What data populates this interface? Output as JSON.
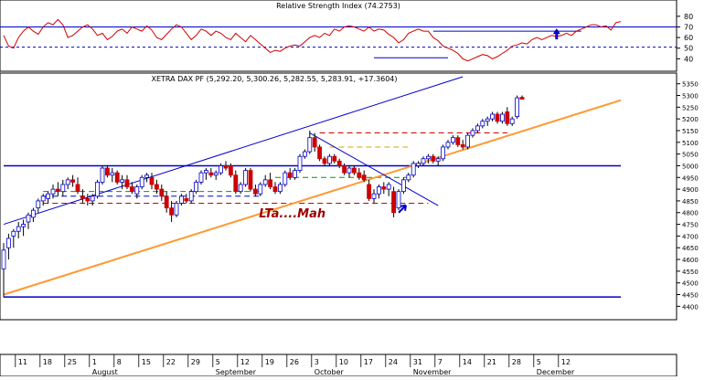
{
  "chart_data": [
    {
      "type": "line",
      "title": "Relative Strength Index (74.2753)",
      "ylim": [
        30,
        85
      ],
      "yticks": [
        40,
        50,
        60,
        70,
        80
      ],
      "levels": [
        51,
        70
      ],
      "grid": false,
      "colors": {
        "rsi": "#cc0000",
        "levels": "#0000cc"
      },
      "series": [
        {
          "values": [
            62,
            52,
            50,
            60,
            66,
            70,
            66,
            63,
            70,
            74,
            72,
            77,
            72,
            60,
            62,
            66,
            70,
            72,
            68,
            62,
            64,
            58,
            61,
            66,
            68,
            64,
            70,
            68,
            66,
            71,
            67,
            60,
            58,
            63,
            68,
            72,
            70,
            64,
            58,
            62,
            68,
            66,
            62,
            66,
            64,
            60,
            58,
            64,
            60,
            56,
            62,
            58,
            54,
            50,
            46,
            48,
            47,
            50,
            52,
            53,
            52,
            56,
            60,
            62,
            60,
            64,
            62,
            68,
            66,
            70,
            71,
            70,
            68,
            66,
            70,
            66,
            68,
            67,
            63,
            60,
            55,
            58,
            64,
            66,
            68,
            66,
            66,
            60,
            57,
            52,
            50,
            48,
            45,
            40,
            38,
            40,
            42,
            44,
            43,
            40,
            42,
            45,
            48,
            52,
            53,
            55,
            54,
            58,
            60,
            58,
            60,
            62,
            61,
            62,
            64,
            62,
            66,
            68,
            70,
            72,
            72,
            70,
            71,
            67,
            74,
            75
          ]
        }
      ],
      "annotation_lines": [
        {
          "x": [
            87,
            117
          ],
          "y": [
            66,
            66
          ]
        },
        {
          "x": [
            75,
            90
          ],
          "y": [
            41,
            41
          ]
        }
      ],
      "arrows": [
        {
          "x": 112,
          "y": 60,
          "direction": "up"
        }
      ]
    },
    {
      "type": "candlestick",
      "title": "XETRA DAX PF (5,292.20, 5,300.26, 5,282.55, 5,283.91, +17.3604)",
      "ylim": [
        4335,
        5380
      ],
      "yticks": [
        4400,
        4450,
        4500,
        4550,
        4600,
        4650,
        4700,
        4750,
        4800,
        4850,
        4900,
        4950,
        5000,
        5050,
        5100,
        5150,
        5200,
        5250,
        5300,
        5350
      ],
      "ytick_labels": [
        "4400",
        "4450",
        "4500",
        "4550",
        "4600",
        "4650",
        "4700",
        "4750",
        "4800",
        "4850",
        "4900",
        "4950",
        "5000",
        "5050",
        "5100",
        "5150",
        "5200",
        "5250",
        "5300",
        "5350"
      ],
      "x_ticks": [
        {
          "x": 2,
          "label": "11"
        },
        {
          "x": 7,
          "label": "18"
        },
        {
          "x": 12,
          "label": "25"
        },
        {
          "x": 17,
          "label": "1"
        },
        {
          "x": 22,
          "label": "8"
        },
        {
          "x": 27,
          "label": "15"
        },
        {
          "x": 32,
          "label": "22"
        },
        {
          "x": 37,
          "label": "29"
        },
        {
          "x": 42,
          "label": "5"
        },
        {
          "x": 47,
          "label": "12"
        },
        {
          "x": 52,
          "label": "19"
        },
        {
          "x": 57,
          "label": "26"
        },
        {
          "x": 62,
          "label": "3"
        },
        {
          "x": 67,
          "label": "10"
        },
        {
          "x": 72,
          "label": "17"
        },
        {
          "x": 77,
          "label": "24"
        },
        {
          "x": 82,
          "label": "31"
        },
        {
          "x": 87,
          "label": "7"
        },
        {
          "x": 92,
          "label": "14"
        },
        {
          "x": 97,
          "label": "21"
        },
        {
          "x": 102,
          "label": "28"
        },
        {
          "x": 107,
          "label": "5"
        },
        {
          "x": 112,
          "label": "12"
        }
      ],
      "month_labels": [
        {
          "x": 17,
          "label": "August"
        },
        {
          "x": 42,
          "label": "September"
        },
        {
          "x": 62,
          "label": "October"
        },
        {
          "x": 82,
          "label": "November"
        },
        {
          "x": 107,
          "label": "December"
        }
      ],
      "candles": [
        {
          "o": 4560,
          "h": 4670,
          "l": 4440,
          "c": 4640
        },
        {
          "o": 4650,
          "h": 4710,
          "l": 4600,
          "c": 4690
        },
        {
          "o": 4700,
          "h": 4730,
          "l": 4650,
          "c": 4720
        },
        {
          "o": 4720,
          "h": 4760,
          "l": 4690,
          "c": 4740
        },
        {
          "o": 4740,
          "h": 4770,
          "l": 4700,
          "c": 4750
        },
        {
          "o": 4760,
          "h": 4800,
          "l": 4730,
          "c": 4790
        },
        {
          "o": 4780,
          "h": 4820,
          "l": 4760,
          "c": 4810
        },
        {
          "o": 4820,
          "h": 4860,
          "l": 4800,
          "c": 4850
        },
        {
          "o": 4850,
          "h": 4880,
          "l": 4830,
          "c": 4870
        },
        {
          "o": 4860,
          "h": 4890,
          "l": 4840,
          "c": 4880
        },
        {
          "o": 4880,
          "h": 4920,
          "l": 4860,
          "c": 4900
        },
        {
          "o": 4900,
          "h": 4930,
          "l": 4870,
          "c": 4890
        },
        {
          "o": 4890,
          "h": 4940,
          "l": 4870,
          "c": 4920
        },
        {
          "o": 4920,
          "h": 4950,
          "l": 4900,
          "c": 4940
        },
        {
          "o": 4940,
          "h": 4960,
          "l": 4910,
          "c": 4930
        },
        {
          "o": 4920,
          "h": 4950,
          "l": 4880,
          "c": 4890
        },
        {
          "o": 4870,
          "h": 4900,
          "l": 4840,
          "c": 4860
        },
        {
          "o": 4860,
          "h": 4880,
          "l": 4830,
          "c": 4850
        },
        {
          "o": 4850,
          "h": 4880,
          "l": 4830,
          "c": 4870
        },
        {
          "o": 4870,
          "h": 4940,
          "l": 4860,
          "c": 4930
        },
        {
          "o": 4930,
          "h": 5000,
          "l": 4920,
          "c": 4990
        },
        {
          "o": 4990,
          "h": 5000,
          "l": 4950,
          "c": 4960
        },
        {
          "o": 4960,
          "h": 4990,
          "l": 4930,
          "c": 4970
        },
        {
          "o": 4970,
          "h": 4980,
          "l": 4920,
          "c": 4930
        },
        {
          "o": 4930,
          "h": 4960,
          "l": 4900,
          "c": 4940
        },
        {
          "o": 4940,
          "h": 4960,
          "l": 4900,
          "c": 4910
        },
        {
          "o": 4910,
          "h": 4930,
          "l": 4880,
          "c": 4890
        },
        {
          "o": 4880,
          "h": 4920,
          "l": 4860,
          "c": 4910
        },
        {
          "o": 4910,
          "h": 4960,
          "l": 4900,
          "c": 4950
        },
        {
          "o": 4950,
          "h": 4970,
          "l": 4930,
          "c": 4960
        },
        {
          "o": 4950,
          "h": 4970,
          "l": 4900,
          "c": 4920
        },
        {
          "o": 4920,
          "h": 4940,
          "l": 4880,
          "c": 4900
        },
        {
          "o": 4900,
          "h": 4920,
          "l": 4850,
          "c": 4870
        },
        {
          "o": 4870,
          "h": 4890,
          "l": 4800,
          "c": 4820
        },
        {
          "o": 4820,
          "h": 4850,
          "l": 4760,
          "c": 4790
        },
        {
          "o": 4790,
          "h": 4850,
          "l": 4780,
          "c": 4840
        },
        {
          "o": 4840,
          "h": 4880,
          "l": 4830,
          "c": 4870
        },
        {
          "o": 4860,
          "h": 4880,
          "l": 4840,
          "c": 4850
        },
        {
          "o": 4850,
          "h": 4900,
          "l": 4840,
          "c": 4890
        },
        {
          "o": 4890,
          "h": 4940,
          "l": 4880,
          "c": 4930
        },
        {
          "o": 4930,
          "h": 4980,
          "l": 4920,
          "c": 4970
        },
        {
          "o": 4970,
          "h": 4990,
          "l": 4940,
          "c": 4980
        },
        {
          "o": 4970,
          "h": 4990,
          "l": 4950,
          "c": 4960
        },
        {
          "o": 4960,
          "h": 4980,
          "l": 4940,
          "c": 4970
        },
        {
          "o": 4970,
          "h": 5010,
          "l": 4960,
          "c": 5000
        },
        {
          "o": 5000,
          "h": 5020,
          "l": 4980,
          "c": 4990
        },
        {
          "o": 5000,
          "h": 5010,
          "l": 4950,
          "c": 4960
        },
        {
          "o": 4960,
          "h": 4980,
          "l": 4880,
          "c": 4890
        },
        {
          "o": 4890,
          "h": 4930,
          "l": 4880,
          "c": 4920
        },
        {
          "o": 4920,
          "h": 4990,
          "l": 4910,
          "c": 4980
        },
        {
          "o": 4980,
          "h": 4990,
          "l": 4890,
          "c": 4900
        },
        {
          "o": 4900,
          "h": 4920,
          "l": 4870,
          "c": 4880
        },
        {
          "o": 4880,
          "h": 4930,
          "l": 4870,
          "c": 4920
        },
        {
          "o": 4920,
          "h": 4960,
          "l": 4910,
          "c": 4940
        },
        {
          "o": 4940,
          "h": 4970,
          "l": 4900,
          "c": 4910
        },
        {
          "o": 4910,
          "h": 4930,
          "l": 4880,
          "c": 4890
        },
        {
          "o": 4890,
          "h": 4930,
          "l": 4880,
          "c": 4920
        },
        {
          "o": 4920,
          "h": 4980,
          "l": 4910,
          "c": 4970
        },
        {
          "o": 4970,
          "h": 4990,
          "l": 4940,
          "c": 4950
        },
        {
          "o": 4950,
          "h": 4990,
          "l": 4940,
          "c": 4980
        },
        {
          "o": 4980,
          "h": 5050,
          "l": 4970,
          "c": 5040
        },
        {
          "o": 5040,
          "h": 5070,
          "l": 5030,
          "c": 5060
        },
        {
          "o": 5060,
          "h": 5150,
          "l": 5050,
          "c": 5120
        },
        {
          "o": 5120,
          "h": 5140,
          "l": 5060,
          "c": 5080
        },
        {
          "o": 5080,
          "h": 5090,
          "l": 5020,
          "c": 5030
        },
        {
          "o": 5030,
          "h": 5040,
          "l": 5000,
          "c": 5010
        },
        {
          "o": 5010,
          "h": 5050,
          "l": 5000,
          "c": 5040
        },
        {
          "o": 5040,
          "h": 5050,
          "l": 5010,
          "c": 5020
        },
        {
          "o": 5020,
          "h": 5030,
          "l": 4990,
          "c": 5000
        },
        {
          "o": 5000,
          "h": 5010,
          "l": 4960,
          "c": 4970
        },
        {
          "o": 4970,
          "h": 5000,
          "l": 4950,
          "c": 4990
        },
        {
          "o": 4990,
          "h": 5000,
          "l": 4960,
          "c": 4970
        },
        {
          "o": 4970,
          "h": 4990,
          "l": 4940,
          "c": 4950
        },
        {
          "o": 4960,
          "h": 4980,
          "l": 4930,
          "c": 4940
        },
        {
          "o": 4920,
          "h": 4940,
          "l": 4850,
          "c": 4860
        },
        {
          "o": 4860,
          "h": 4900,
          "l": 4840,
          "c": 4880
        },
        {
          "o": 4880,
          "h": 4920,
          "l": 4860,
          "c": 4910
        },
        {
          "o": 4910,
          "h": 4930,
          "l": 4880,
          "c": 4900
        },
        {
          "o": 4900,
          "h": 4930,
          "l": 4870,
          "c": 4920
        },
        {
          "o": 4890,
          "h": 4910,
          "l": 4780,
          "c": 4800
        },
        {
          "o": 4820,
          "h": 4900,
          "l": 4810,
          "c": 4890
        },
        {
          "o": 4890,
          "h": 4950,
          "l": 4880,
          "c": 4940
        },
        {
          "o": 4940,
          "h": 4970,
          "l": 4930,
          "c": 4960
        },
        {
          "o": 4960,
          "h": 5020,
          "l": 4950,
          "c": 5010
        },
        {
          "o": 5000,
          "h": 5020,
          "l": 4990,
          "c": 5010
        },
        {
          "o": 5010,
          "h": 5040,
          "l": 5000,
          "c": 5030
        },
        {
          "o": 5030,
          "h": 5050,
          "l": 5010,
          "c": 5040
        },
        {
          "o": 5040,
          "h": 5050,
          "l": 5010,
          "c": 5020
        },
        {
          "o": 5020,
          "h": 5040,
          "l": 5000,
          "c": 5030
        },
        {
          "o": 5030,
          "h": 5090,
          "l": 5020,
          "c": 5080
        },
        {
          "o": 5080,
          "h": 5110,
          "l": 5070,
          "c": 5100
        },
        {
          "o": 5100,
          "h": 5130,
          "l": 5090,
          "c": 5120
        },
        {
          "o": 5120,
          "h": 5130,
          "l": 5080,
          "c": 5090
        },
        {
          "o": 5090,
          "h": 5110,
          "l": 5070,
          "c": 5080
        },
        {
          "o": 5080,
          "h": 5140,
          "l": 5070,
          "c": 5130
        },
        {
          "o": 5130,
          "h": 5160,
          "l": 5120,
          "c": 5150
        },
        {
          "o": 5150,
          "h": 5180,
          "l": 5140,
          "c": 5170
        },
        {
          "o": 5170,
          "h": 5200,
          "l": 5160,
          "c": 5190
        },
        {
          "o": 5190,
          "h": 5210,
          "l": 5170,
          "c": 5200
        },
        {
          "o": 5200,
          "h": 5230,
          "l": 5190,
          "c": 5220
        },
        {
          "o": 5220,
          "h": 5230,
          "l": 5180,
          "c": 5190
        },
        {
          "o": 5190,
          "h": 5230,
          "l": 5180,
          "c": 5220
        },
        {
          "o": 5230,
          "h": 5250,
          "l": 5170,
          "c": 5180
        },
        {
          "o": 5180,
          "h": 5210,
          "l": 5170,
          "c": 5200
        },
        {
          "o": 5210,
          "h": 5300,
          "l": 5200,
          "c": 5290
        },
        {
          "o": 5292.2,
          "h": 5300.26,
          "l": 5282.55,
          "c": 5283.91
        }
      ],
      "horizontal_lines": [
        {
          "y": 5000,
          "color": "#0000cc",
          "style": "solid",
          "x": [
            0,
            125
          ]
        },
        {
          "y": 4440,
          "color": "#0000cc",
          "style": "solid",
          "x": [
            0,
            125
          ]
        },
        {
          "y": 5140,
          "color": "#cc0000",
          "style": "dash",
          "x": [
            64,
            102
          ]
        },
        {
          "y": 5080,
          "color": "#ccaa00",
          "style": "dash",
          "x": [
            66,
            82
          ]
        },
        {
          "y": 4890,
          "color": "#009900",
          "style": "dash",
          "x": [
            8,
            52
          ]
        },
        {
          "y": 4870,
          "color": "#0000cc",
          "style": "dash",
          "x": [
            8,
            52
          ]
        },
        {
          "y": 4840,
          "color": "#cc0000",
          "style": "dash",
          "x": [
            8,
            86
          ]
        },
        {
          "y": 4950,
          "color": "#009900",
          "style": "dash",
          "x": [
            55,
            82
          ]
        }
      ],
      "trend_lines": [
        {
          "x": [
            0,
            125
          ],
          "y": [
            4450,
            5280
          ],
          "color": "#ff9933",
          "width": 2
        },
        {
          "x": [
            0,
            93
          ],
          "y": [
            4750,
            5380
          ],
          "color": "#0000cc",
          "width": 1
        },
        {
          "x": [
            62,
            88
          ],
          "y": [
            5140,
            4830
          ],
          "color": "#0000cc",
          "width": 1
        }
      ],
      "annotations": [
        {
          "text": "LTa....Mah",
          "x": 48,
          "y": 4780,
          "color": "#990000"
        }
      ],
      "arrows": [
        {
          "x": 80,
          "y": 4800,
          "direction": "up-right"
        }
      ]
    }
  ]
}
